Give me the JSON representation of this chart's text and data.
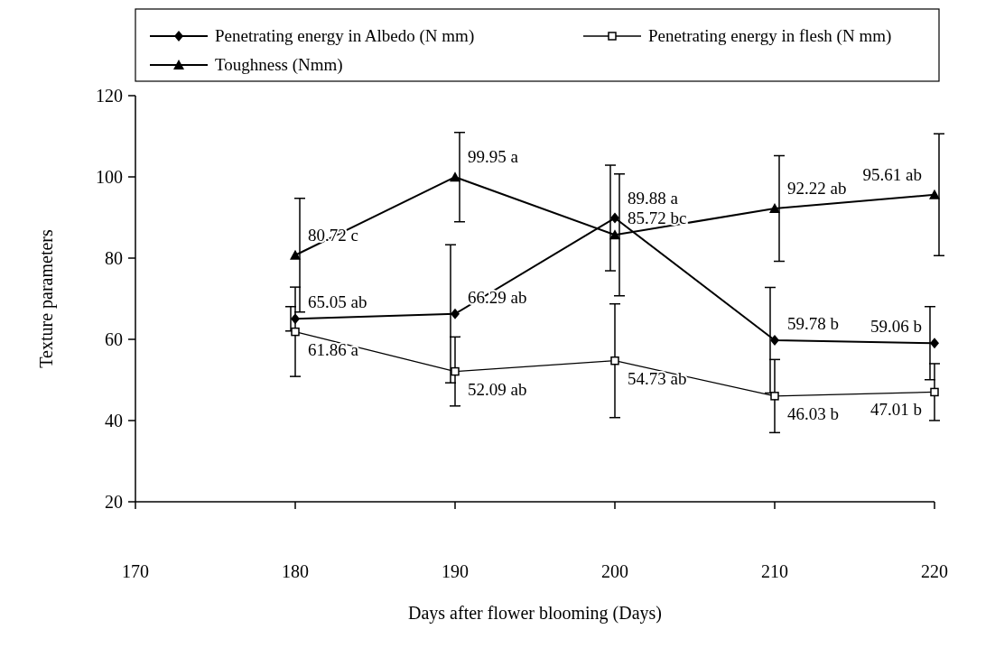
{
  "chart_data": {
    "type": "line",
    "xlabel": "Days after flower blooming (Days)",
    "ylabel": "Texture parameters",
    "x": [
      180,
      190,
      200,
      210,
      220
    ],
    "xlim": [
      170,
      220
    ],
    "xticks": [
      170,
      180,
      190,
      200,
      210,
      220
    ],
    "ylim": [
      20,
      120
    ],
    "yticks": [
      20,
      40,
      60,
      80,
      100,
      120
    ],
    "grid": false,
    "legend": "top",
    "series": [
      {
        "name": "Penetrating energy in Albedo (N mm)",
        "color": "#000000",
        "marker": "diamond",
        "values": [
          65.05,
          66.29,
          89.88,
          59.78,
          59.06
        ],
        "errors": [
          3,
          17,
          13,
          13,
          9
        ],
        "value_labels": [
          "65.05 ab",
          "66.29 ab",
          "89.88 a",
          "59.78 b",
          "59.06 b"
        ]
      },
      {
        "name": "Penetrating energy in flesh (N mm)",
        "color": "#000000",
        "marker": "square",
        "values": [
          61.86,
          52.09,
          54.73,
          46.03,
          47.01
        ],
        "errors": [
          11,
          8.5,
          14,
          9,
          7
        ],
        "value_labels": [
          "61.86 a",
          "52.09 ab",
          "54.73 ab",
          "46.03 b",
          "47.01 b"
        ]
      },
      {
        "name": "Toughness (Nmm)",
        "color": "#000000",
        "marker": "triangle",
        "values": [
          80.72,
          99.95,
          85.72,
          92.22,
          95.61
        ],
        "errors": [
          14,
          11,
          15,
          13,
          15
        ],
        "value_labels": [
          "80.72 c",
          "99.95 a",
          "85.72 bc",
          "92.22 ab",
          "95.61 ab"
        ]
      }
    ]
  }
}
